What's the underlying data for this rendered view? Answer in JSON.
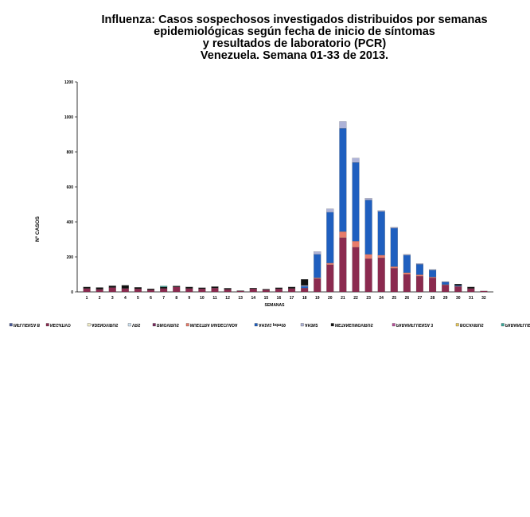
{
  "chart_data": {
    "type": "bar",
    "stacked": true,
    "title_lines": [
      "Influenza: Casos sospechosos investigados distribuidos por semanas",
      "epidemiológicas según fecha de inicio de síntomas",
      "y resultados de laboratorio (PCR)",
      "Venezuela. Semana 01-33 de 2013."
    ],
    "xlabel": "SEMANAS",
    "ylabel": "Nº CASOS",
    "ylim": [
      0,
      1200
    ],
    "yticks": [
      "0",
      "200",
      "400",
      "600",
      "800",
      "1000",
      "1200"
    ],
    "categories": [
      "1",
      "2",
      "3",
      "4",
      "5",
      "6",
      "7",
      "8",
      "9",
      "10",
      "11",
      "12",
      "13",
      "14",
      "15",
      "16",
      "17",
      "18",
      "19",
      "20",
      "21",
      "22",
      "23",
      "24",
      "25",
      "26",
      "27",
      "28",
      "29",
      "30",
      "31",
      "32"
    ],
    "legend_position": "bottom (text rendered mirrored)",
    "series": [
      {
        "name": "INFLUENZA B",
        "color": "#4a5a9a",
        "values": [
          0,
          0,
          0,
          0,
          0,
          0,
          0,
          0,
          0,
          0,
          0,
          0,
          0,
          0,
          0,
          0,
          0,
          0,
          0,
          0,
          0,
          0,
          0,
          0,
          0,
          0,
          0,
          0,
          0,
          0,
          0,
          0
        ]
      },
      {
        "name": "NEGATIVO",
        "color": "#8b2a4f",
        "values": [
          20,
          15,
          25,
          20,
          18,
          12,
          20,
          28,
          20,
          18,
          22,
          15,
          5,
          18,
          12,
          18,
          20,
          22,
          75,
          155,
          310,
          255,
          190,
          195,
          135,
          100,
          90,
          80,
          40,
          30,
          20,
          5
        ]
      },
      {
        "name": "ADENOVIRUS",
        "color": "#f3eec8",
        "values": [
          0,
          0,
          0,
          0,
          0,
          0,
          0,
          0,
          0,
          0,
          0,
          0,
          0,
          0,
          0,
          0,
          0,
          0,
          0,
          0,
          0,
          0,
          0,
          0,
          0,
          0,
          0,
          0,
          0,
          0,
          0,
          0
        ]
      },
      {
        "name": "VRS",
        "color": "#cfe3f3",
        "values": [
          0,
          0,
          0,
          0,
          0,
          0,
          0,
          0,
          0,
          0,
          0,
          0,
          0,
          0,
          0,
          0,
          0,
          0,
          0,
          0,
          0,
          0,
          0,
          0,
          0,
          0,
          0,
          0,
          0,
          0,
          0,
          0
        ]
      },
      {
        "name": "RINOVIRUS",
        "color": "#7a2a5e",
        "values": [
          0,
          0,
          0,
          0,
          0,
          0,
          0,
          0,
          0,
          0,
          0,
          0,
          0,
          0,
          0,
          0,
          0,
          0,
          0,
          0,
          0,
          0,
          0,
          0,
          0,
          0,
          0,
          0,
          0,
          0,
          0,
          0
        ]
      },
      {
        "name": "MUESTRA INADECUADA",
        "color": "#e87b6a",
        "values": [
          0,
          0,
          0,
          0,
          0,
          0,
          0,
          0,
          0,
          0,
          0,
          0,
          0,
          0,
          0,
          0,
          0,
          0,
          5,
          10,
          35,
          35,
          25,
          15,
          10,
          10,
          8,
          5,
          2,
          2,
          0,
          0
        ]
      },
      {
        "name": "AH1N1 pdm09",
        "color": "#1f5fbf",
        "values": [
          0,
          0,
          0,
          0,
          0,
          0,
          0,
          0,
          0,
          0,
          0,
          0,
          0,
          0,
          0,
          0,
          0,
          10,
          135,
          290,
          590,
          450,
          310,
          250,
          220,
          100,
          60,
          40,
          15,
          5,
          0,
          0
        ]
      },
      {
        "name": "AH3N2",
        "color": "#aeb3d8",
        "values": [
          0,
          0,
          0,
          0,
          0,
          0,
          0,
          0,
          0,
          0,
          0,
          0,
          0,
          0,
          0,
          0,
          0,
          5,
          15,
          20,
          40,
          25,
          10,
          5,
          5,
          5,
          5,
          3,
          2,
          0,
          0,
          0
        ]
      },
      {
        "name": "METANEUMOVIRUS",
        "color": "#111111",
        "values": [
          8,
          10,
          10,
          18,
          8,
          6,
          8,
          6,
          8,
          6,
          8,
          6,
          2,
          4,
          4,
          6,
          8,
          35,
          0,
          0,
          0,
          0,
          0,
          0,
          0,
          0,
          0,
          0,
          0,
          8,
          8,
          0
        ]
      },
      {
        "name": "PARAINFLUENZA 3",
        "color": "#b8509a",
        "values": [
          0,
          0,
          0,
          0,
          0,
          0,
          0,
          0,
          0,
          0,
          0,
          0,
          0,
          0,
          0,
          0,
          0,
          0,
          0,
          0,
          0,
          0,
          0,
          0,
          0,
          0,
          0,
          0,
          0,
          0,
          0,
          0
        ]
      },
      {
        "name": "BOCAVIRUS",
        "color": "#e8c85a",
        "values": [
          0,
          0,
          0,
          0,
          0,
          0,
          0,
          0,
          0,
          0,
          0,
          0,
          0,
          0,
          0,
          0,
          0,
          0,
          0,
          0,
          0,
          0,
          0,
          0,
          0,
          0,
          0,
          0,
          0,
          0,
          0,
          0
        ]
      },
      {
        "name": "PARAINFLUENZA 1",
        "color": "#3aa89a",
        "values": [
          0,
          0,
          0,
          0,
          0,
          0,
          6,
          0,
          0,
          0,
          0,
          0,
          0,
          0,
          0,
          0,
          0,
          0,
          0,
          0,
          0,
          0,
          0,
          0,
          0,
          0,
          0,
          0,
          0,
          0,
          0,
          0
        ]
      }
    ]
  }
}
